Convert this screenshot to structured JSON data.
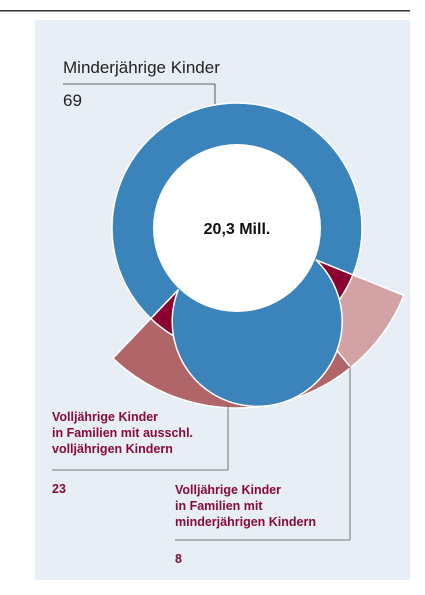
{
  "chart_data": {
    "type": "donut",
    "total_label": "20,3 Mill.",
    "categories": [
      [
        "Minderjährige Kinder"
      ],
      [
        "Volljährige Kinder",
        "in Familien mit ausschl.",
        "volljährigen Kindern"
      ],
      [
        "Volljährige Kinder",
        "in Familien mit",
        "minderjährigen Kindern"
      ]
    ],
    "values": [
      69,
      23,
      8
    ],
    "colors": [
      "#3b83bb",
      "#b06669",
      "#d2a2a4"
    ],
    "inner_color": "#8b0132"
  }
}
